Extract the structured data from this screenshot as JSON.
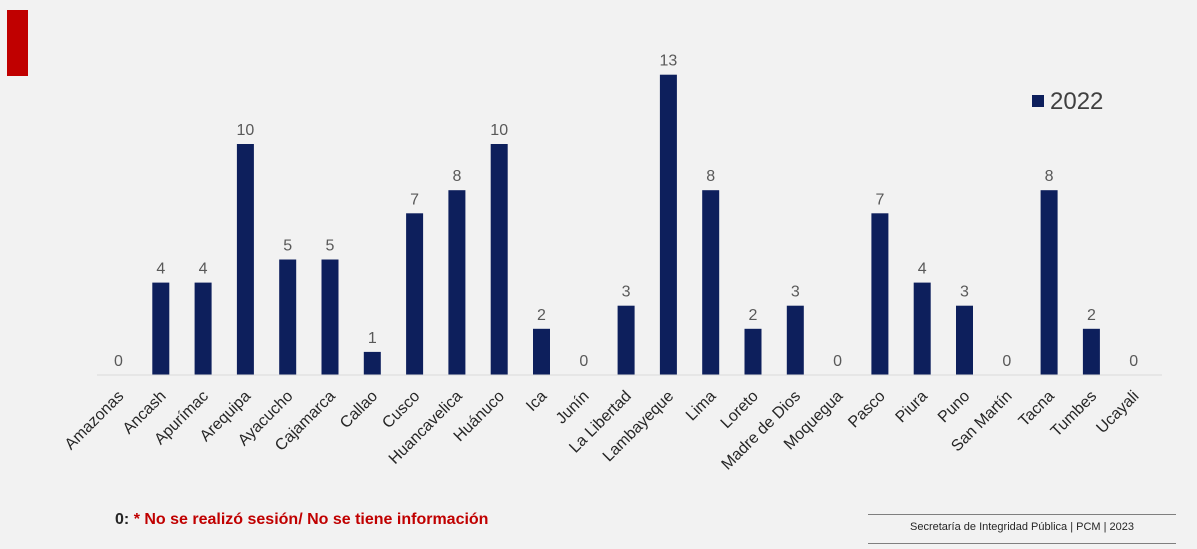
{
  "chart_data": {
    "type": "bar",
    "categories": [
      "Amazonas",
      "Ancash",
      "Apurímac",
      "Arequipa",
      "Ayacucho",
      "Cajamarca",
      "Callao",
      "Cusco",
      "Huancavelica",
      "Huánuco",
      "Ica",
      "Junín",
      "La Libertad",
      "Lambayeque",
      "Lima",
      "Loreto",
      "Madre de Dios",
      "Moquegua",
      "Pasco",
      "Piura",
      "Puno",
      "San Martín",
      "Tacna",
      "Tumbes",
      "Ucayali"
    ],
    "series": [
      {
        "name": "2022",
        "values": [
          0,
          4,
          4,
          10,
          5,
          5,
          1,
          7,
          8,
          10,
          2,
          0,
          3,
          13,
          8,
          2,
          3,
          0,
          7,
          4,
          3,
          0,
          8,
          2,
          0
        ]
      }
    ],
    "data_labels": true,
    "legend": "top-right",
    "ylim": [
      0,
      14
    ],
    "grid": false,
    "bar_color": "#0d1f5c"
  },
  "footnote": {
    "zero_label": "0:",
    "note": "* No se realizó sesión/ No se tiene información"
  },
  "footer": {
    "text": "Secretaría de Integridad Pública | PCM |  2023"
  },
  "colors": {
    "accent": "#c00000",
    "bar": "#0d1f5c",
    "background": "#f2f2f2"
  }
}
